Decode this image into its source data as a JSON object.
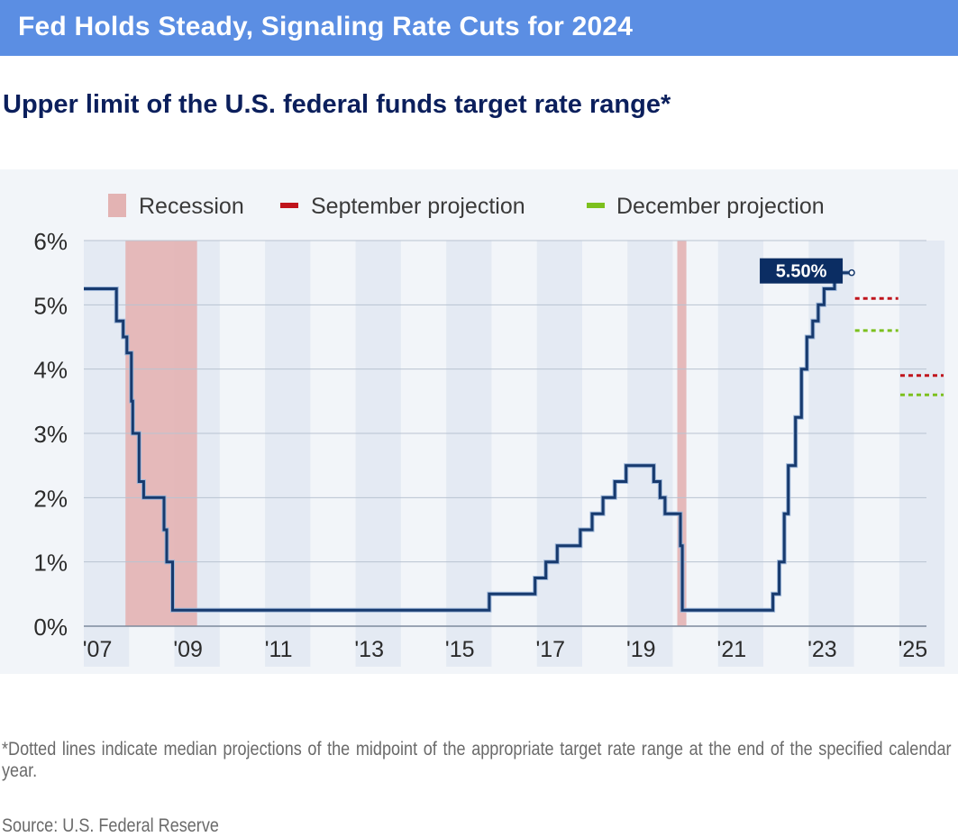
{
  "header": {
    "headline": "Fed Holds Steady, Signaling Rate Cuts for 2024",
    "subtitle": "Upper limit of the U.S. federal funds target rate range*"
  },
  "footer": {
    "footnote": "*Dotted lines indicate median projections of the midpoint of the appropriate target rate range at the end of the specified calendar year.",
    "source": "Source: U.S. Federal Reserve"
  },
  "colors": {
    "line": "#173a6e",
    "recession": "#e3b3b3",
    "september": "#c0141c",
    "december": "#7cc01e",
    "band": "#e4eaf3",
    "label_bg": "#0b2d63"
  },
  "chart_data": {
    "type": "line",
    "title": "Upper limit of the U.S. federal funds target rate range*",
    "xlabel": "",
    "ylabel": "",
    "xlim": [
      2007,
      2025.6
    ],
    "ylim": [
      0,
      6
    ],
    "y_ticks": [
      "0%",
      "1%",
      "2%",
      "3%",
      "4%",
      "5%",
      "6%"
    ],
    "x_ticks": [
      {
        "value": 2007.3,
        "label": "'07"
      },
      {
        "value": 2009.3,
        "label": "'09"
      },
      {
        "value": 2011.3,
        "label": "'11"
      },
      {
        "value": 2013.3,
        "label": "'13"
      },
      {
        "value": 2015.3,
        "label": "'15"
      },
      {
        "value": 2017.3,
        "label": "'17"
      },
      {
        "value": 2019.3,
        "label": "'19"
      },
      {
        "value": 2021.3,
        "label": "'21"
      },
      {
        "value": 2023.3,
        "label": "'23"
      },
      {
        "value": 2025.3,
        "label": "'25"
      }
    ],
    "grid": true,
    "legend": {
      "placement": "top",
      "items": [
        {
          "label": "Recession",
          "key": "recession"
        },
        {
          "label": "September projection",
          "key": "september"
        },
        {
          "label": "December projection",
          "key": "december"
        }
      ]
    },
    "recessions": [
      {
        "start": 2007.92,
        "end": 2009.5
      },
      {
        "start": 2020.1,
        "end": 2020.3
      }
    ],
    "series": [
      {
        "values": [
          [
            2007.0,
            5.25
          ],
          [
            2007.72,
            5.25
          ],
          [
            2007.72,
            4.75
          ],
          [
            2007.87,
            4.75
          ],
          [
            2007.87,
            4.5
          ],
          [
            2007.95,
            4.5
          ],
          [
            2007.95,
            4.25
          ],
          [
            2008.05,
            4.25
          ],
          [
            2008.05,
            3.5
          ],
          [
            2008.08,
            3.5
          ],
          [
            2008.08,
            3.0
          ],
          [
            2008.22,
            3.0
          ],
          [
            2008.22,
            2.25
          ],
          [
            2008.32,
            2.25
          ],
          [
            2008.32,
            2.0
          ],
          [
            2008.77,
            2.0
          ],
          [
            2008.77,
            1.5
          ],
          [
            2008.83,
            1.5
          ],
          [
            2008.83,
            1.0
          ],
          [
            2008.96,
            1.0
          ],
          [
            2008.96,
            0.25
          ],
          [
            2015.95,
            0.25
          ],
          [
            2015.95,
            0.5
          ],
          [
            2016.96,
            0.5
          ],
          [
            2016.96,
            0.75
          ],
          [
            2017.2,
            0.75
          ],
          [
            2017.2,
            1.0
          ],
          [
            2017.45,
            1.0
          ],
          [
            2017.45,
            1.25
          ],
          [
            2017.96,
            1.25
          ],
          [
            2017.96,
            1.5
          ],
          [
            2018.22,
            1.5
          ],
          [
            2018.22,
            1.75
          ],
          [
            2018.46,
            1.75
          ],
          [
            2018.46,
            2.0
          ],
          [
            2018.72,
            2.0
          ],
          [
            2018.72,
            2.25
          ],
          [
            2018.97,
            2.25
          ],
          [
            2018.97,
            2.5
          ],
          [
            2019.58,
            2.5
          ],
          [
            2019.58,
            2.25
          ],
          [
            2019.72,
            2.25
          ],
          [
            2019.72,
            2.0
          ],
          [
            2019.83,
            2.0
          ],
          [
            2019.83,
            1.75
          ],
          [
            2020.17,
            1.75
          ],
          [
            2020.17,
            1.25
          ],
          [
            2020.21,
            1.25
          ],
          [
            2020.21,
            0.25
          ],
          [
            2022.21,
            0.25
          ],
          [
            2022.21,
            0.5
          ],
          [
            2022.35,
            0.5
          ],
          [
            2022.35,
            1.0
          ],
          [
            2022.46,
            1.0
          ],
          [
            2022.46,
            1.75
          ],
          [
            2022.55,
            1.75
          ],
          [
            2022.55,
            2.5
          ],
          [
            2022.71,
            2.5
          ],
          [
            2022.71,
            3.25
          ],
          [
            2022.84,
            3.25
          ],
          [
            2022.84,
            4.0
          ],
          [
            2022.96,
            4.0
          ],
          [
            2022.96,
            4.5
          ],
          [
            2023.09,
            4.5
          ],
          [
            2023.09,
            4.75
          ],
          [
            2023.21,
            4.75
          ],
          [
            2023.21,
            5.0
          ],
          [
            2023.34,
            5.0
          ],
          [
            2023.34,
            5.25
          ],
          [
            2023.57,
            5.25
          ],
          [
            2023.57,
            5.5
          ],
          [
            2023.95,
            5.5
          ]
        ]
      }
    ],
    "projections": [
      {
        "key": "september",
        "year": 2024,
        "value": 5.1
      },
      {
        "key": "december",
        "year": 2024,
        "value": 4.6
      },
      {
        "key": "september",
        "year": 2025,
        "value": 3.9
      },
      {
        "key": "december",
        "year": 2025,
        "value": 3.6
      }
    ],
    "annotations": [
      {
        "label": "5.50%",
        "x": 2023.95,
        "y": 5.5
      }
    ]
  }
}
